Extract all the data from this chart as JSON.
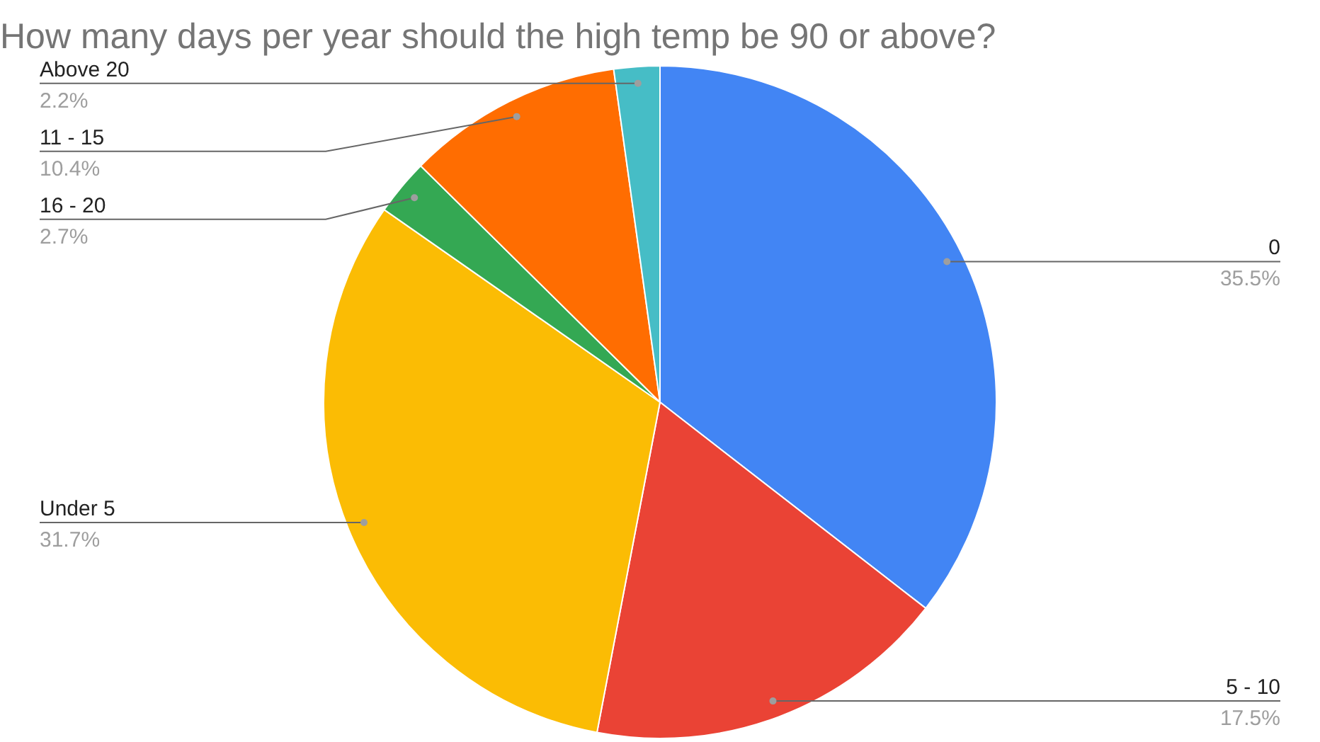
{
  "chart_data": {
    "type": "pie",
    "title": "How many days per year should the high temp be 90 or above?",
    "categories": [
      "0",
      "5 - 10",
      "Under 5",
      "16 - 20",
      "11 - 15",
      "Above 20"
    ],
    "values": [
      35.5,
      17.5,
      31.7,
      2.7,
      10.4,
      2.2
    ],
    "colors": [
      "#4285f4",
      "#ea4335",
      "#fbbc04",
      "#34a853",
      "#ff6d01",
      "#46bdc6"
    ],
    "value_labels": [
      "35.5%",
      "17.5%",
      "31.7%",
      "2.7%",
      "10.4%",
      "2.2%"
    ],
    "legend": false
  }
}
